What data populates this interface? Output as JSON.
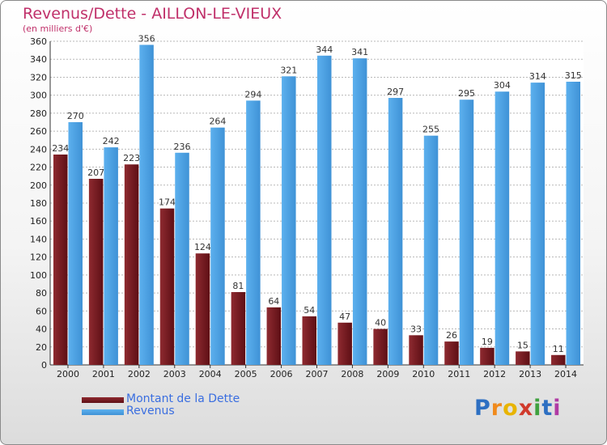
{
  "chart_data": {
    "type": "bar",
    "title": "Revenus/Dette - AILLON-LE-VIEUX",
    "subtitle": "(en milliers d'€)",
    "categories": [
      "2000",
      "2001",
      "2002",
      "2003",
      "2004",
      "2005",
      "2006",
      "2007",
      "2008",
      "2009",
      "2010",
      "2011",
      "2012",
      "2013",
      "2014"
    ],
    "series": [
      {
        "name": "Montant de la Dette",
        "color": "#7a1c22",
        "values": [
          234,
          207,
          223,
          174,
          124,
          81,
          64,
          54,
          47,
          40,
          33,
          26,
          19,
          15,
          11
        ]
      },
      {
        "name": "Revenus",
        "color": "#4ea6e6",
        "values": [
          270,
          242,
          356,
          236,
          264,
          294,
          321,
          344,
          341,
          297,
          255,
          295,
          304,
          314,
          315
        ]
      }
    ],
    "ylim": [
      0,
      360
    ],
    "yticks": [
      0,
      20,
      40,
      60,
      80,
      100,
      120,
      140,
      160,
      180,
      200,
      220,
      240,
      260,
      280,
      300,
      320,
      340,
      360
    ],
    "xlabel": "",
    "ylabel": "",
    "grid": true,
    "legend": "bottom-left"
  },
  "logo": {
    "letters": [
      "P",
      "r",
      "o",
      "x",
      "i",
      "t",
      "i"
    ],
    "colors": [
      "#2d6fc2",
      "#f08a1c",
      "#e8b400",
      "#d03a2c",
      "#3fa13f",
      "#2d6fc2",
      "#b03aa4"
    ]
  }
}
